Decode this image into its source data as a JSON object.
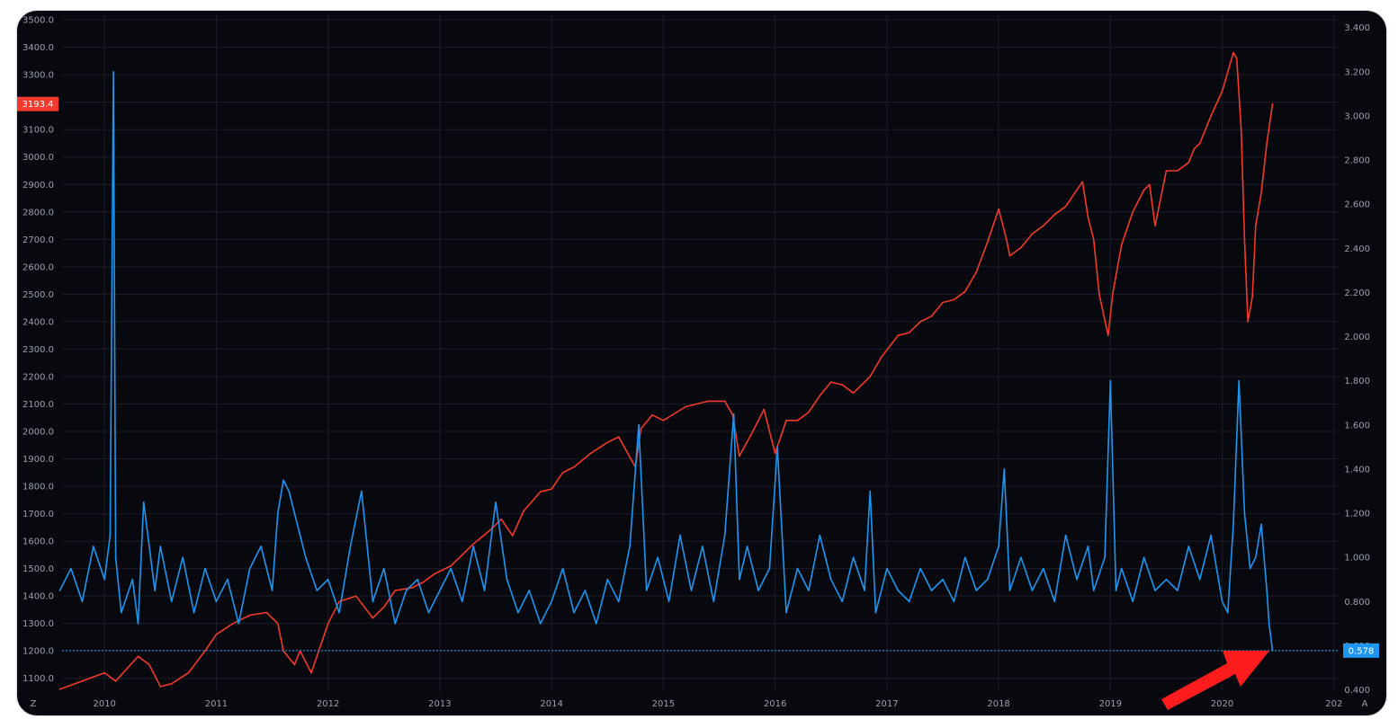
{
  "chart_data": {
    "type": "line",
    "x_ticks": [
      "2010",
      "2011",
      "2012",
      "2013",
      "2014",
      "2015",
      "2016",
      "2017",
      "2018",
      "2019",
      "2020",
      "202"
    ],
    "left_axis": {
      "ticks": [
        "3500.0",
        "3400.0",
        "3300.0",
        "3200.0",
        "3100.0",
        "3000.0",
        "2900.0",
        "2800.0",
        "2700.0",
        "2600.0",
        "2500.0",
        "2400.0",
        "2300.0",
        "2200.0",
        "2100.0",
        "2000.0",
        "1900.0",
        "1800.0",
        "1700.0",
        "1600.0",
        "1500.0",
        "1400.0",
        "1300.0",
        "1200.0",
        "1100.0"
      ],
      "range": [
        1050,
        3520
      ]
    },
    "right_axis": {
      "ticks": [
        "3.400",
        "3.200",
        "3.000",
        "2.800",
        "2.600",
        "2.400",
        "2.200",
        "2.000",
        "1.800",
        "1.600",
        "1.400",
        "1.200",
        "1.000",
        "0.800",
        "0.600",
        "0.400"
      ],
      "range": [
        0.39,
        3.46
      ]
    },
    "series": [
      {
        "axis": "left",
        "color": "#f2392b",
        "x": [
          2009.6,
          2009.8,
          2010.0,
          2010.1,
          2010.3,
          2010.4,
          2010.5,
          2010.6,
          2010.75,
          2010.9,
          2011.0,
          2011.15,
          2011.3,
          2011.45,
          2011.55,
          2011.6,
          2011.7,
          2011.75,
          2011.85,
          2011.95,
          2012.0,
          2012.1,
          2012.25,
          2012.4,
          2012.5,
          2012.6,
          2012.75,
          2012.85,
          2012.95,
          2013.1,
          2013.3,
          2013.45,
          2013.55,
          2013.65,
          2013.75,
          2013.9,
          2014.0,
          2014.1,
          2014.2,
          2014.35,
          2014.5,
          2014.6,
          2014.75,
          2014.8,
          2014.9,
          2015.0,
          2015.2,
          2015.4,
          2015.55,
          2015.62,
          2015.68,
          2015.8,
          2015.9,
          2016.0,
          2016.1,
          2016.2,
          2016.3,
          2016.4,
          2016.5,
          2016.6,
          2016.7,
          2016.8,
          2016.85,
          2016.95,
          2017.1,
          2017.2,
          2017.3,
          2017.4,
          2017.5,
          2017.6,
          2017.7,
          2017.8,
          2017.9,
          2018.0,
          2018.07,
          2018.1,
          2018.2,
          2018.3,
          2018.4,
          2018.5,
          2018.6,
          2018.7,
          2018.75,
          2018.8,
          2018.85,
          2018.9,
          2018.98,
          2019.02,
          2019.1,
          2019.2,
          2019.3,
          2019.35,
          2019.4,
          2019.5,
          2019.6,
          2019.7,
          2019.75,
          2019.8,
          2019.9,
          2020.0,
          2020.1,
          2020.13,
          2020.17,
          2020.2,
          2020.23,
          2020.27,
          2020.3,
          2020.35,
          2020.4,
          2020.45
        ],
        "y": [
          1060,
          1090,
          1120,
          1090,
          1180,
          1150,
          1070,
          1080,
          1120,
          1200,
          1260,
          1300,
          1330,
          1340,
          1300,
          1200,
          1150,
          1200,
          1120,
          1240,
          1300,
          1380,
          1400,
          1320,
          1360,
          1420,
          1430,
          1450,
          1480,
          1510,
          1590,
          1640,
          1680,
          1620,
          1710,
          1780,
          1790,
          1850,
          1870,
          1920,
          1960,
          1980,
          1870,
          2010,
          2060,
          2040,
          2090,
          2110,
          2110,
          2060,
          1910,
          2000,
          2080,
          1920,
          2040,
          2040,
          2070,
          2130,
          2180,
          2170,
          2140,
          2180,
          2200,
          2270,
          2350,
          2360,
          2400,
          2420,
          2470,
          2480,
          2510,
          2580,
          2690,
          2810,
          2700,
          2640,
          2670,
          2720,
          2750,
          2790,
          2820,
          2880,
          2910,
          2780,
          2700,
          2500,
          2350,
          2500,
          2680,
          2800,
          2880,
          2900,
          2750,
          2950,
          2950,
          2980,
          3030,
          3050,
          3150,
          3240,
          3380,
          3360,
          3100,
          2700,
          2400,
          2490,
          2750,
          2870,
          3050,
          3193
        ]
      },
      {
        "axis": "right",
        "color": "#1e96f0",
        "x": [
          2009.6,
          2009.7,
          2009.8,
          2009.9,
          2010.0,
          2010.05,
          2010.08,
          2010.1,
          2010.15,
          2010.25,
          2010.3,
          2010.35,
          2010.45,
          2010.5,
          2010.6,
          2010.7,
          2010.8,
          2010.9,
          2011.0,
          2011.1,
          2011.2,
          2011.3,
          2011.4,
          2011.5,
          2011.55,
          2011.6,
          2011.65,
          2011.7,
          2011.8,
          2011.9,
          2012.0,
          2012.1,
          2012.2,
          2012.3,
          2012.4,
          2012.5,
          2012.6,
          2012.7,
          2012.8,
          2012.9,
          2013.0,
          2013.1,
          2013.2,
          2013.3,
          2013.4,
          2013.5,
          2013.6,
          2013.7,
          2013.8,
          2013.9,
          2014.0,
          2014.1,
          2014.2,
          2014.3,
          2014.4,
          2014.5,
          2014.6,
          2014.7,
          2014.78,
          2014.85,
          2014.95,
          2015.05,
          2015.15,
          2015.25,
          2015.35,
          2015.45,
          2015.55,
          2015.63,
          2015.68,
          2015.75,
          2015.85,
          2015.95,
          2016.02,
          2016.1,
          2016.2,
          2016.3,
          2016.4,
          2016.5,
          2016.6,
          2016.7,
          2016.8,
          2016.85,
          2016.9,
          2017.0,
          2017.1,
          2017.2,
          2017.3,
          2017.4,
          2017.5,
          2017.6,
          2017.7,
          2017.8,
          2017.9,
          2018.0,
          2018.05,
          2018.1,
          2018.2,
          2018.3,
          2018.4,
          2018.5,
          2018.6,
          2018.7,
          2018.8,
          2018.85,
          2018.95,
          2019.0,
          2019.05,
          2019.1,
          2019.2,
          2019.3,
          2019.4,
          2019.5,
          2019.6,
          2019.7,
          2019.8,
          2019.9,
          2020.0,
          2020.05,
          2020.1,
          2020.15,
          2020.2,
          2020.25,
          2020.3,
          2020.35,
          2020.4,
          2020.42,
          2020.45
        ],
        "y": [
          0.85,
          0.95,
          0.8,
          1.05,
          0.9,
          1.1,
          3.2,
          1.0,
          0.75,
          0.9,
          0.7,
          1.25,
          0.85,
          1.05,
          0.8,
          1.0,
          0.75,
          0.95,
          0.8,
          0.9,
          0.7,
          0.95,
          1.05,
          0.85,
          1.2,
          1.35,
          1.3,
          1.2,
          1.0,
          0.85,
          0.9,
          0.75,
          1.05,
          1.3,
          0.8,
          0.95,
          0.7,
          0.85,
          0.9,
          0.75,
          0.85,
          0.95,
          0.8,
          1.05,
          0.85,
          1.25,
          0.9,
          0.75,
          0.85,
          0.7,
          0.8,
          0.95,
          0.75,
          0.85,
          0.7,
          0.9,
          0.8,
          1.05,
          1.6,
          0.85,
          1.0,
          0.8,
          1.1,
          0.85,
          1.05,
          0.8,
          1.1,
          1.65,
          0.9,
          1.05,
          0.85,
          0.95,
          1.5,
          0.75,
          0.95,
          0.85,
          1.1,
          0.9,
          0.8,
          1.0,
          0.85,
          1.3,
          0.75,
          0.95,
          0.85,
          0.8,
          0.95,
          0.85,
          0.9,
          0.8,
          1.0,
          0.85,
          0.9,
          1.05,
          1.4,
          0.85,
          1.0,
          0.85,
          0.95,
          0.8,
          1.1,
          0.9,
          1.05,
          0.85,
          1.0,
          1.8,
          0.85,
          0.95,
          0.8,
          1.0,
          0.85,
          0.9,
          0.85,
          1.05,
          0.9,
          1.1,
          0.8,
          0.75,
          1.15,
          1.8,
          1.2,
          0.95,
          1.0,
          1.15,
          0.85,
          0.7,
          0.578
        ]
      }
    ],
    "last_values": {
      "left": "3193.4",
      "right": "0.578"
    },
    "corner_left": "Z",
    "corner_right": "A",
    "grid": true
  }
}
